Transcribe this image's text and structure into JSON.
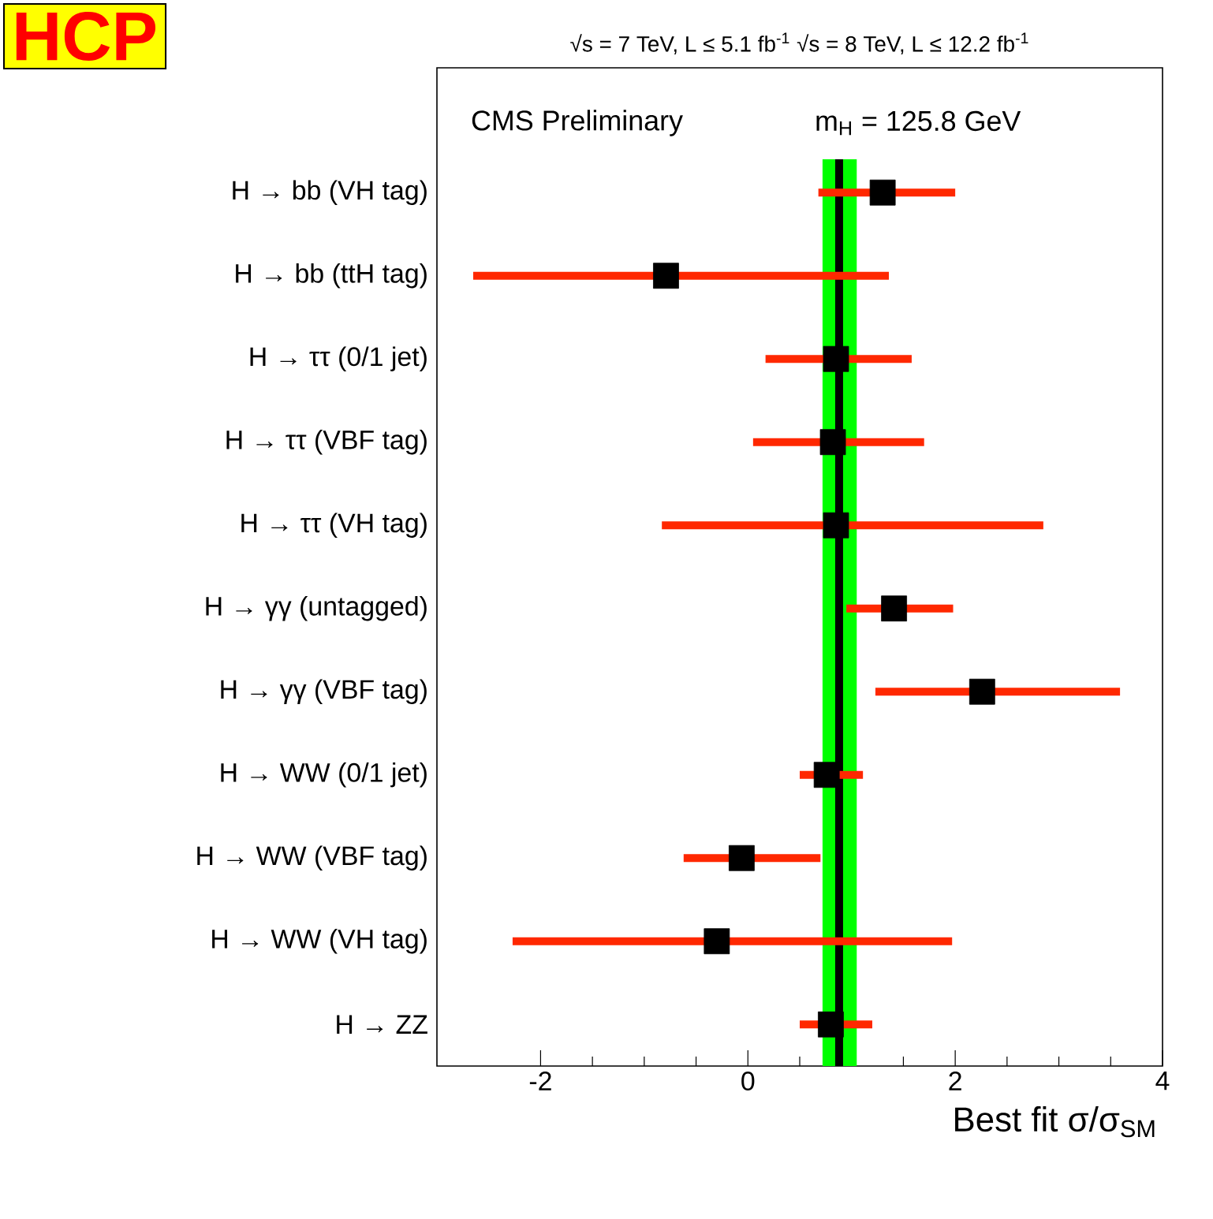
{
  "chart_data": {
    "type": "scatter",
    "orientation": "horizontal",
    "marker": "square",
    "categories": [
      "H → bb (VH tag)",
      "H → bb (ttH tag)",
      "H → ττ (0/1 jet)",
      "H → ττ (VBF tag)",
      "H → ττ (VH tag)",
      "H → γγ (untagged)",
      "H → γγ (VBF tag)",
      "H → WW (0/1 jet)",
      "H → WW (VBF tag)",
      "H → WW (VH tag)",
      "H → ZZ"
    ],
    "series": [
      {
        "color": "#000000",
        "values": [
          1.3,
          -0.79,
          0.85,
          0.82,
          0.85,
          1.41,
          2.26,
          0.76,
          -0.06,
          -0.3,
          0.8
        ],
        "errors": [
          [
            0.68,
            2.0
          ],
          [
            -2.65,
            1.36
          ],
          [
            0.17,
            1.58
          ],
          [
            0.05,
            1.7
          ],
          [
            -0.83,
            2.85
          ],
          [
            0.95,
            1.98
          ],
          [
            1.23,
            3.59
          ],
          [
            0.5,
            1.11
          ],
          [
            -0.62,
            0.7
          ],
          [
            -2.27,
            1.97
          ],
          [
            0.5,
            1.2
          ]
        ]
      }
    ],
    "xlim": [
      -3,
      4
    ],
    "xticks": [
      -2,
      0,
      2,
      4
    ],
    "xlabel": "Best fit σ/σ$_{SM}$",
    "ref_lines": [
      {
        "axis": "x",
        "value": 0.88,
        "color": "#000000"
      }
    ],
    "bands": [
      {
        "axis": "x",
        "from": 0.72,
        "to": 1.05,
        "color": "#00ff00"
      }
    ],
    "annotations": [
      "HCP",
      "√s = 7 TeV, L ≤ 5.1 fb$^{-1}$  √s = 8 TeV, L ≤ 12.2 fb$^{-1}$",
      "CMS Preliminary",
      "m$_{H}$ = 125.8 GeV"
    ]
  }
}
